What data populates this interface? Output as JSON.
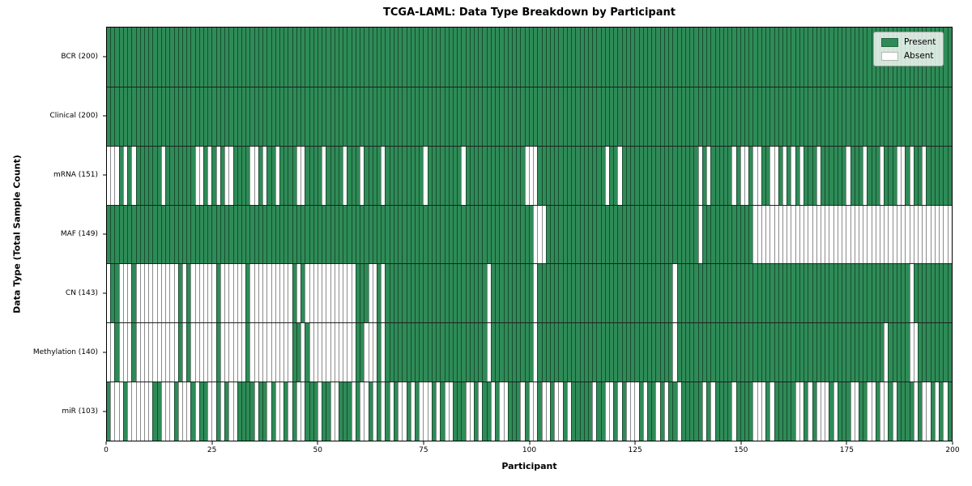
{
  "chart_data": {
    "type": "heatmap",
    "title": "TCGA-LAML: Data Type Breakdown by Participant",
    "xlabel": "Participant",
    "ylabel": "Data Type (Total Sample Count)",
    "x_range": [
      0,
      200
    ],
    "n_participants": 200,
    "x_ticks": [
      0,
      25,
      50,
      75,
      100,
      125,
      150,
      175,
      200
    ],
    "grid": "cell-borders",
    "legend_position": "upper right",
    "legend": [
      {
        "label": "Present",
        "color": "#2e8b57"
      },
      {
        "label": "Absent",
        "color": "#ffffff"
      }
    ],
    "colors": {
      "present": "#2e8b57",
      "absent": "#ffffff",
      "cell_border": "rgba(0,0,0,0.45)",
      "row_separator": "#1f1f1f",
      "spine": "#000000"
    },
    "rows": [
      {
        "label": "BCR (200)",
        "name": "BCR",
        "total_present": 200,
        "absent_cols": []
      },
      {
        "label": "Clinical (200)",
        "name": "Clinical",
        "total_present": 200,
        "absent_cols": []
      },
      {
        "label": "mRNA (151)",
        "name": "mRNA",
        "total_present": 151,
        "absent_cols": [
          0,
          1,
          2,
          4,
          6,
          13,
          21,
          22,
          24,
          26,
          28,
          29,
          34,
          35,
          37,
          40,
          45,
          46,
          51,
          56,
          60,
          65,
          75,
          84,
          99,
          100,
          101,
          118,
          121,
          140,
          142,
          148,
          150,
          151,
          153,
          154,
          157,
          158,
          160,
          162,
          164,
          168,
          175,
          179,
          183,
          187,
          188,
          190,
          193
        ]
      },
      {
        "label": "MAF (149)",
        "name": "MAF",
        "total_present": 149,
        "absent_cols": [
          101,
          102,
          103,
          140,
          153,
          154,
          155,
          156,
          157,
          158,
          159,
          160,
          161,
          162,
          163,
          164,
          165,
          166,
          167,
          168,
          169,
          170,
          171,
          172,
          173,
          174,
          175,
          176,
          177,
          178,
          179,
          180,
          181,
          182,
          183,
          184,
          185,
          186,
          187,
          188,
          189,
          190,
          191,
          192,
          193,
          194,
          195,
          196,
          197,
          198,
          199
        ]
      },
      {
        "label": "CN (143)",
        "name": "CN",
        "total_present": 143,
        "absent_cols": [
          0,
          3,
          4,
          5,
          7,
          8,
          9,
          10,
          11,
          12,
          13,
          14,
          15,
          16,
          18,
          20,
          21,
          22,
          23,
          24,
          25,
          27,
          28,
          29,
          30,
          31,
          32,
          34,
          35,
          36,
          37,
          38,
          39,
          40,
          41,
          42,
          43,
          45,
          47,
          48,
          49,
          50,
          51,
          52,
          53,
          54,
          55,
          56,
          57,
          58,
          62,
          63,
          65,
          90,
          101,
          134,
          190
        ]
      },
      {
        "label": "Methylation (140)",
        "name": "Methylation",
        "total_present": 140,
        "absent_cols": [
          0,
          1,
          3,
          4,
          5,
          7,
          8,
          9,
          10,
          11,
          12,
          13,
          14,
          15,
          16,
          18,
          20,
          21,
          22,
          23,
          24,
          25,
          27,
          28,
          29,
          30,
          31,
          32,
          34,
          35,
          36,
          37,
          38,
          39,
          40,
          41,
          42,
          43,
          46,
          48,
          49,
          50,
          51,
          52,
          53,
          54,
          55,
          56,
          57,
          58,
          61,
          62,
          63,
          65,
          90,
          101,
          134,
          184,
          190,
          191
        ]
      },
      {
        "label": "miR (103)",
        "name": "miR",
        "total_present": 103,
        "absent_cols": [
          1,
          2,
          3,
          5,
          6,
          7,
          8,
          9,
          10,
          13,
          14,
          15,
          17,
          18,
          19,
          21,
          24,
          25,
          27,
          29,
          30,
          35,
          38,
          40,
          41,
          43,
          45,
          46,
          50,
          53,
          54,
          58,
          60,
          61,
          63,
          65,
          67,
          69,
          70,
          72,
          74,
          75,
          76,
          78,
          80,
          81,
          85,
          86,
          88,
          91,
          93,
          94,
          98,
          100,
          101,
          103,
          104,
          106,
          107,
          109,
          115,
          118,
          119,
          121,
          123,
          124,
          125,
          127,
          130,
          132,
          135,
          141,
          143,
          148,
          153,
          154,
          155,
          157,
          163,
          164,
          166,
          168,
          169,
          170,
          172,
          176,
          177,
          180,
          181,
          183,
          184,
          186,
          191,
          193,
          194,
          196,
          198
        ]
      }
    ]
  }
}
